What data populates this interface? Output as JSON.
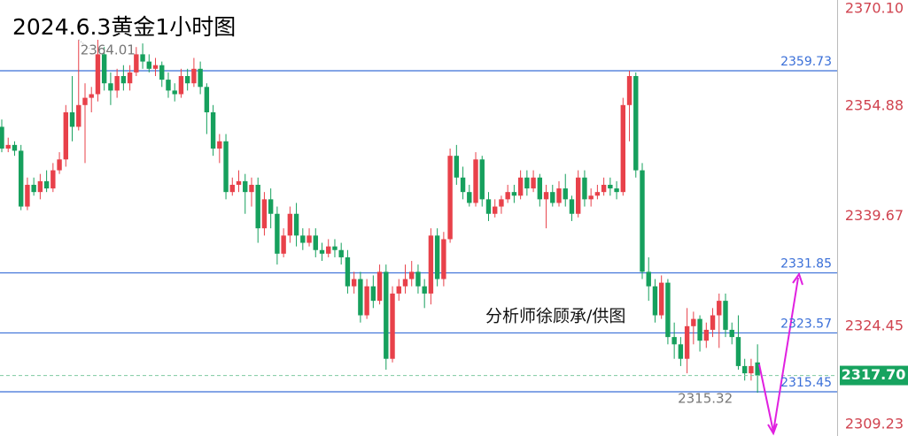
{
  "chart_data": {
    "type": "candlestick",
    "title": "2024.6.3黄金1小时图",
    "up_color": "#e8414a",
    "down_color": "#16a05d",
    "level_color": "#3a6fd8",
    "ylim": [
      2309.23,
      2370.1
    ],
    "yticks": [
      {
        "value": 2370.1,
        "label": "2370.10"
      },
      2354.88,
      2339.67,
      2324.45,
      2309.23
    ],
    "levels": [
      2359.73,
      2331.85,
      2323.57,
      2315.45
    ],
    "current_price": {
      "value": 2317.7,
      "label": "2317.70"
    },
    "annotations": {
      "high": 2364.01,
      "low": 2315.32,
      "credit": "分析师徐顾承/供图"
    },
    "candles": [
      [
        2352,
        2353,
        2348.5,
        2349
      ],
      [
        2349,
        2350.5,
        2348.5,
        2349.5
      ],
      [
        2349.5,
        2350,
        2348,
        2348.7
      ],
      [
        2348.7,
        2349.5,
        2340.5,
        2341
      ],
      [
        2341,
        2345,
        2340.5,
        2344
      ],
      [
        2344,
        2345,
        2342.5,
        2343
      ],
      [
        2343,
        2345.5,
        2342,
        2344.5
      ],
      [
        2344.5,
        2346,
        2343,
        2343.5
      ],
      [
        2343.5,
        2347,
        2343,
        2346
      ],
      [
        2346,
        2348.5,
        2345.5,
        2347.5
      ],
      [
        2347.5,
        2355,
        2346.5,
        2354
      ],
      [
        2354,
        2359,
        2350,
        2352
      ],
      [
        2352,
        2364.01,
        2351.5,
        2355
      ],
      [
        2355,
        2358,
        2347,
        2356
      ],
      [
        2356,
        2357.5,
        2354,
        2356.5
      ],
      [
        2356.5,
        2364,
        2355.5,
        2362
      ],
      [
        2362,
        2363,
        2357,
        2358
      ],
      [
        2358,
        2359.5,
        2355,
        2357
      ],
      [
        2357,
        2360,
        2356,
        2359
      ],
      [
        2359,
        2360.5,
        2357,
        2358
      ],
      [
        2358,
        2360.5,
        2357,
        2359.5
      ],
      [
        2359.5,
        2363,
        2359,
        2362
      ],
      [
        2362,
        2363.5,
        2360,
        2361
      ],
      [
        2361,
        2362,
        2359.5,
        2360
      ],
      [
        2360,
        2361.5,
        2359,
        2360.5
      ],
      [
        2360.5,
        2361,
        2357.5,
        2358.5
      ],
      [
        2358.5,
        2359.5,
        2356,
        2357
      ],
      [
        2357,
        2358,
        2355.5,
        2356.5
      ],
      [
        2356.5,
        2360,
        2356,
        2359
      ],
      [
        2359,
        2360,
        2357,
        2358
      ],
      [
        2358,
        2361.5,
        2357.5,
        2360
      ],
      [
        2360,
        2361,
        2356.5,
        2357.5
      ],
      [
        2357.5,
        2358,
        2351,
        2354
      ],
      [
        2354,
        2355,
        2348,
        2349
      ],
      [
        2349,
        2351,
        2347,
        2350
      ],
      [
        2350,
        2351,
        2342,
        2343
      ],
      [
        2343,
        2345,
        2342.5,
        2344
      ],
      [
        2344,
        2346,
        2343,
        2344.5
      ],
      [
        2344.5,
        2345.5,
        2340,
        2343
      ],
      [
        2343,
        2345,
        2341,
        2344
      ],
      [
        2344,
        2345,
        2336,
        2338
      ],
      [
        2338,
        2343,
        2337,
        2342
      ],
      [
        2342,
        2343.5,
        2338,
        2340
      ],
      [
        2340,
        2341,
        2333,
        2334.5
      ],
      [
        2334.5,
        2338,
        2334,
        2337
      ],
      [
        2337,
        2341,
        2336,
        2340
      ],
      [
        2340,
        2341.5,
        2335.5,
        2337
      ],
      [
        2337,
        2338,
        2335,
        2336
      ],
      [
        2336,
        2338,
        2335.5,
        2337
      ],
      [
        2337,
        2338,
        2334,
        2335
      ],
      [
        2335,
        2336,
        2333.5,
        2334.5
      ],
      [
        2334.5,
        2336.5,
        2334,
        2335.5
      ],
      [
        2335.5,
        2336.5,
        2334,
        2335
      ],
      [
        2335,
        2336,
        2333,
        2334
      ],
      [
        2334,
        2335,
        2329,
        2330
      ],
      [
        2330,
        2332,
        2329,
        2331
      ],
      [
        2331,
        2332,
        2325,
        2326
      ],
      [
        2326,
        2331,
        2325.5,
        2330
      ],
      [
        2330,
        2331.5,
        2327,
        2328
      ],
      [
        2328,
        2333,
        2327.5,
        2332
      ],
      [
        2332,
        2333,
        2318.5,
        2320
      ],
      [
        2320,
        2330,
        2319.5,
        2329
      ],
      [
        2329,
        2331,
        2328,
        2330
      ],
      [
        2330,
        2333,
        2329,
        2331
      ],
      [
        2331,
        2333.5,
        2330,
        2332
      ],
      [
        2332,
        2333,
        2329,
        2330
      ],
      [
        2330,
        2331,
        2327,
        2329
      ],
      [
        2329,
        2338,
        2327.5,
        2337
      ],
      [
        2337,
        2338,
        2330,
        2331
      ],
      [
        2331,
        2337.5,
        2330,
        2336.5
      ],
      [
        2336.5,
        2349,
        2336,
        2348
      ],
      [
        2348,
        2349.5,
        2344,
        2345
      ],
      [
        2345,
        2346.5,
        2342,
        2343
      ],
      [
        2343,
        2344,
        2341,
        2341.5
      ],
      [
        2341.5,
        2348.5,
        2341,
        2347.5
      ],
      [
        2347.5,
        2348,
        2341,
        2342
      ],
      [
        2342,
        2343,
        2339,
        2340
      ],
      [
        2340,
        2342,
        2339.5,
        2341
      ],
      [
        2341,
        2342.5,
        2340,
        2342
      ],
      [
        2342,
        2344,
        2341.5,
        2343
      ],
      [
        2343,
        2344,
        2341.5,
        2342.5
      ],
      [
        2342.5,
        2346,
        2342,
        2345
      ],
      [
        2345,
        2346,
        2342.5,
        2343.5
      ],
      [
        2343.5,
        2346,
        2343,
        2345
      ],
      [
        2345,
        2345.5,
        2341,
        2342
      ],
      [
        2342,
        2344,
        2338,
        2343
      ],
      [
        2343,
        2344,
        2341,
        2341.5
      ],
      [
        2341.5,
        2344.5,
        2341,
        2343.5
      ],
      [
        2343.5,
        2345.5,
        2341,
        2342
      ],
      [
        2342,
        2342.5,
        2339,
        2340
      ],
      [
        2340,
        2346,
        2339.5,
        2345
      ],
      [
        2345,
        2346,
        2341,
        2342
      ],
      [
        2342,
        2343.5,
        2341,
        2342.5
      ],
      [
        2342.5,
        2344,
        2342,
        2343
      ],
      [
        2343,
        2345,
        2342.5,
        2344
      ],
      [
        2344,
        2345,
        2342.5,
        2343.5
      ],
      [
        2343.5,
        2344.5,
        2342,
        2343
      ],
      [
        2343,
        2356,
        2342.5,
        2355
      ],
      [
        2355,
        2359.73,
        2350,
        2359
      ],
      [
        2359,
        2359.5,
        2345,
        2346
      ],
      [
        2346,
        2347,
        2331,
        2332
      ],
      [
        2332,
        2334,
        2328,
        2330
      ],
      [
        2330,
        2331,
        2325,
        2326
      ],
      [
        2326,
        2331.5,
        2325.5,
        2330.5
      ],
      [
        2330.5,
        2331,
        2322,
        2323
      ],
      [
        2323,
        2325,
        2320,
        2322
      ],
      [
        2322,
        2323,
        2319,
        2320
      ],
      [
        2320,
        2327,
        2318,
        2324.5
      ],
      [
        2324.5,
        2326.5,
        2322,
        2325.5
      ],
      [
        2325.5,
        2326,
        2321,
        2322.5
      ],
      [
        2322.5,
        2325,
        2321.5,
        2324
      ],
      [
        2324,
        2327,
        2323,
        2326
      ],
      [
        2326,
        2329,
        2321.5,
        2328
      ],
      [
        2328,
        2329,
        2323,
        2324
      ],
      [
        2324,
        2325,
        2322,
        2323
      ],
      [
        2323,
        2326,
        2318.5,
        2319
      ],
      [
        2319,
        2320,
        2317,
        2318
      ],
      [
        2318,
        2320,
        2317,
        2319
      ],
      [
        2319.5,
        2322,
        2315.32,
        2317.7
      ]
    ]
  }
}
